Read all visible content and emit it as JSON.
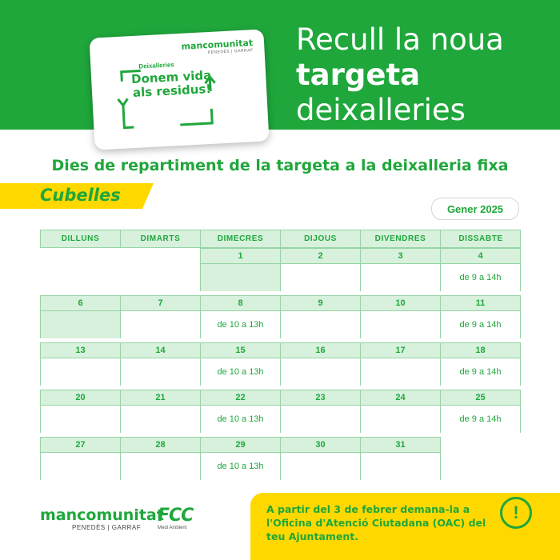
{
  "header": {
    "headline_line1": "Recull la noua",
    "headline_line2": "targeta",
    "headline_line3": "deixalleries"
  },
  "card": {
    "brand": "mancomunitat",
    "brand_sub": "PENEDÈS | GARRAF",
    "label": "Deixalleries",
    "slogan": "Donem vida als residus!"
  },
  "subtitle": "Dies de repartiment de la targeta a la deixalleria fixa",
  "town": "Cubelles",
  "month": "Gener 2025",
  "calendar": {
    "weekdays": [
      "DILLUNS",
      "DIMARTS",
      "DIMECRES",
      "DIJOUS",
      "DIVENDRES",
      "DISSABTE"
    ],
    "weeks": [
      [
        {
          "day": "",
          "text": ""
        },
        {
          "day": "",
          "text": ""
        },
        {
          "day": "1",
          "text": ""
        },
        {
          "day": "2",
          "text": ""
        },
        {
          "day": "3",
          "text": ""
        },
        {
          "day": "4",
          "text": "de 9 a 14h"
        }
      ],
      [
        {
          "day": "6",
          "text": ""
        },
        {
          "day": "7",
          "text": ""
        },
        {
          "day": "8",
          "text": "de 10 a 13h"
        },
        {
          "day": "9",
          "text": ""
        },
        {
          "day": "10",
          "text": ""
        },
        {
          "day": "11",
          "text": "de 9 a 14h"
        }
      ],
      [
        {
          "day": "13",
          "text": ""
        },
        {
          "day": "14",
          "text": ""
        },
        {
          "day": "15",
          "text": "de 10 a 13h"
        },
        {
          "day": "16",
          "text": ""
        },
        {
          "day": "17",
          "text": ""
        },
        {
          "day": "18",
          "text": "de 9 a 14h"
        }
      ],
      [
        {
          "day": "20",
          "text": ""
        },
        {
          "day": "21",
          "text": ""
        },
        {
          "day": "22",
          "text": "de 10 a 13h"
        },
        {
          "day": "23",
          "text": ""
        },
        {
          "day": "24",
          "text": ""
        },
        {
          "day": "25",
          "text": "de 9 a 14h"
        }
      ],
      [
        {
          "day": "27",
          "text": ""
        },
        {
          "day": "28",
          "text": ""
        },
        {
          "day": "29",
          "text": "de 10 a 13h"
        },
        {
          "day": "30",
          "text": ""
        },
        {
          "day": "31",
          "text": ""
        },
        {
          "day": "",
          "text": ""
        }
      ]
    ]
  },
  "footer": {
    "brand": "mancomunitat",
    "brand_sub": "PENEDÈS | GARRAF",
    "fcc": "FCC",
    "fcc_sub": "Medi Ambient"
  },
  "notice": {
    "text": "A partir del 3 de febrer demana-la a l'Oficina d'Atenció Ciutadana (OAC) del teu Ajuntament.",
    "icon": "!"
  },
  "colors": {
    "green": "#1fa73b",
    "light_green": "#d7f1dc",
    "yellow": "#ffd800"
  }
}
